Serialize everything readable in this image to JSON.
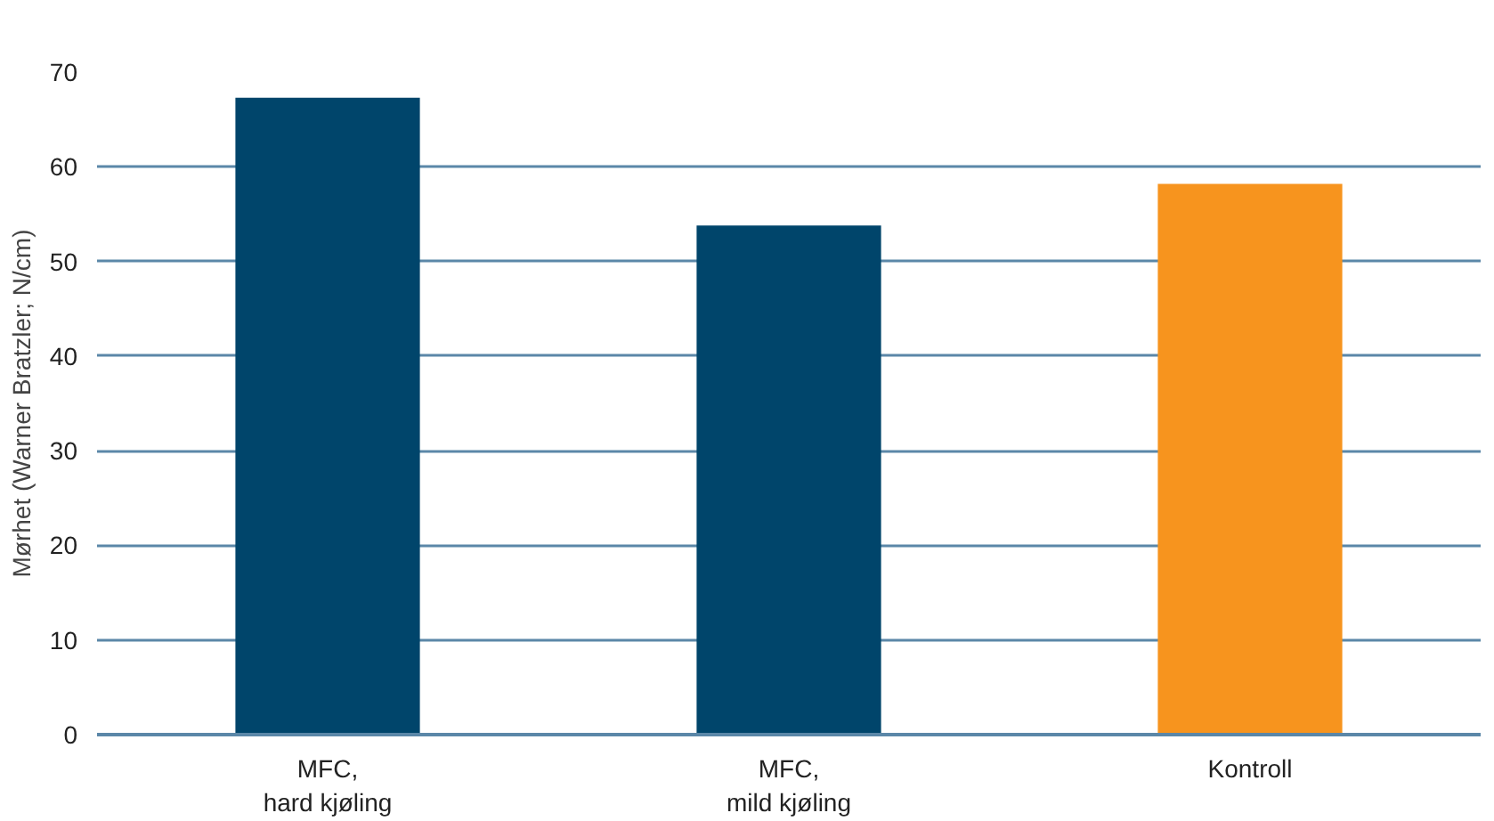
{
  "chart_data": {
    "type": "bar",
    "ylabel": "Mørhet (Warner Bratzler; N/cm)",
    "categories": [
      "MFC,\nhard kjøling",
      "MFC,\nmild kjøling",
      "Kontroll"
    ],
    "values": [
      67.3,
      53.8,
      58.2
    ],
    "colors": [
      "#00456b",
      "#00456b",
      "#f7941e"
    ],
    "ylim": [
      0,
      70
    ],
    "yticks": [
      0,
      10,
      20,
      30,
      40,
      50,
      60,
      70
    ],
    "grid": "y"
  }
}
